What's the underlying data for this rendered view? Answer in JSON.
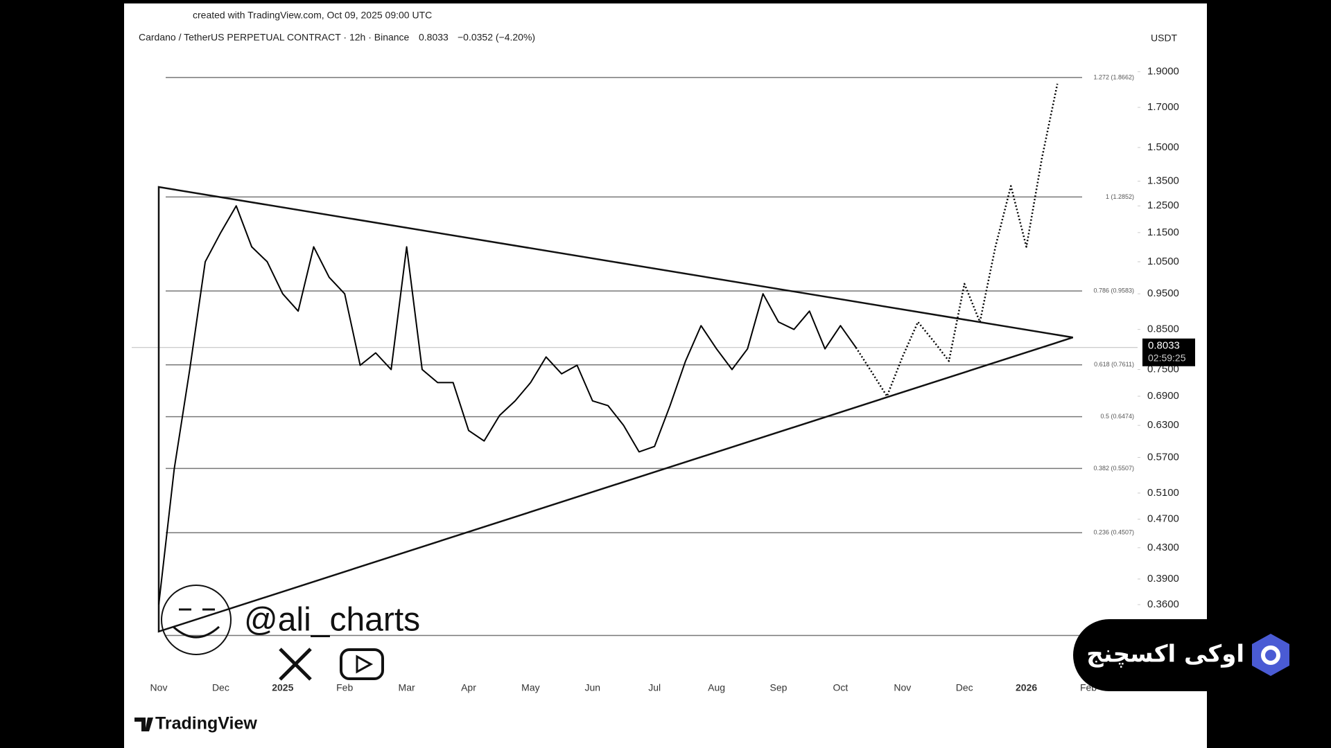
{
  "chart_data": {
    "type": "line",
    "created_note": "created with TradingView.com, Oct 09, 2025 09:00 UTC",
    "title": "Cardano / TetherUS PERPETUAL CONTRACT · 12h · Binance",
    "last_price": 0.8033,
    "change": "−0.0352 (−4.20%)",
    "countdown": "02:59:25",
    "currency": "USDT",
    "watermark": "@ali_charts",
    "logo": "TradingView",
    "overlay_text": "اوکی اکسچنج",
    "log_scale": true,
    "grid": false,
    "categories": [
      "Nov",
      null,
      null,
      null,
      "Dec",
      null,
      null,
      null,
      "2025",
      null,
      null,
      null,
      "Feb",
      null,
      null,
      null,
      "Mar",
      null,
      null,
      null,
      "Apr",
      null,
      null,
      null,
      "May",
      null,
      null,
      null,
      "Jun",
      null,
      null,
      null,
      "Jul",
      null,
      null,
      null,
      "Aug",
      null,
      null,
      null,
      "Sep",
      null,
      null,
      null,
      "Oct",
      null,
      null,
      null,
      "Nov",
      null,
      null,
      null,
      "Dec",
      null,
      null,
      null,
      "2026",
      null,
      null,
      null,
      "Feb"
    ],
    "series": [
      {
        "color": "#000000",
        "line_style": "solid",
        "values": [
          0.36,
          0.55,
          0.75,
          1.05,
          1.15,
          1.25,
          1.1,
          1.05,
          0.95,
          0.9,
          1.1,
          1.0,
          0.95,
          0.76,
          0.79,
          0.75,
          1.1,
          0.75,
          0.72,
          0.72,
          0.62,
          0.6,
          0.65,
          0.68,
          0.72,
          0.78,
          0.74,
          0.76,
          0.68,
          0.67,
          0.63,
          0.58,
          0.59,
          0.67,
          0.77,
          0.86,
          0.8,
          0.75,
          0.8,
          0.95,
          0.87,
          0.85,
          0.9,
          0.8,
          0.86,
          0.8033,
          null,
          null,
          null,
          null,
          null,
          null,
          null,
          null,
          null,
          null,
          null,
          null,
          null,
          null,
          null
        ]
      },
      {
        "color": "#000000",
        "line_style": "dotted",
        "values": [
          null,
          null,
          null,
          null,
          null,
          null,
          null,
          null,
          null,
          null,
          null,
          null,
          null,
          null,
          null,
          null,
          null,
          null,
          null,
          null,
          null,
          null,
          null,
          null,
          null,
          null,
          null,
          null,
          null,
          null,
          null,
          null,
          null,
          null,
          null,
          null,
          null,
          null,
          null,
          null,
          null,
          null,
          null,
          null,
          null,
          0.8033,
          0.745,
          0.69,
          0.78,
          0.87,
          0.82,
          0.77,
          0.98,
          0.87,
          1.1,
          1.33,
          1.1,
          1.45,
          1.83,
          null,
          null
        ]
      }
    ],
    "triangle": [
      [
        0,
        1.326
      ],
      [
        59,
        0.829
      ],
      [
        0,
        0.331
      ]
    ],
    "fib_levels": [
      {
        "label": "1.272 (1.8662)",
        "value": 1.8662
      },
      {
        "label": "1 (1.2852)",
        "value": 1.2852
      },
      {
        "label": "0.786 (0.9583)",
        "value": 0.9583
      },
      {
        "label": "0.618 (0.7611)",
        "value": 0.7611
      },
      {
        "label": "0.5 (0.6474)",
        "value": 0.6474
      },
      {
        "label": "0.382 (0.5507)",
        "value": 0.5507
      },
      {
        "label": "0.236 (0.4507)",
        "value": 0.4507
      },
      {
        "value": 0.327
      }
    ],
    "ylim": [
      0.29,
      2.03
    ],
    "yticks": [
      {
        "value": 1.9,
        "label": "1.9000"
      },
      {
        "value": 1.7,
        "label": "1.7000"
      },
      {
        "value": 1.5,
        "label": "1.5000"
      },
      {
        "value": 1.35,
        "label": "1.3500"
      },
      {
        "value": 1.25,
        "label": "1.2500"
      },
      {
        "value": 1.15,
        "label": "1.1500"
      },
      {
        "value": 1.05,
        "label": "1.0500"
      },
      {
        "value": 0.95,
        "label": "0.9500"
      },
      {
        "value": 0.85,
        "label": "0.8500"
      },
      {
        "value": 0.75,
        "label": "0.7500"
      },
      {
        "value": 0.69,
        "label": "0.6900"
      },
      {
        "value": 0.63,
        "label": "0.6300"
      },
      {
        "value": 0.57,
        "label": "0.5700"
      },
      {
        "value": 0.51,
        "label": "0.5100"
      },
      {
        "value": 0.47,
        "label": "0.4700"
      },
      {
        "value": 0.43,
        "label": "0.4300"
      },
      {
        "value": 0.39,
        "label": "0.3900"
      },
      {
        "value": 0.36,
        "label": "0.3600"
      }
    ]
  }
}
